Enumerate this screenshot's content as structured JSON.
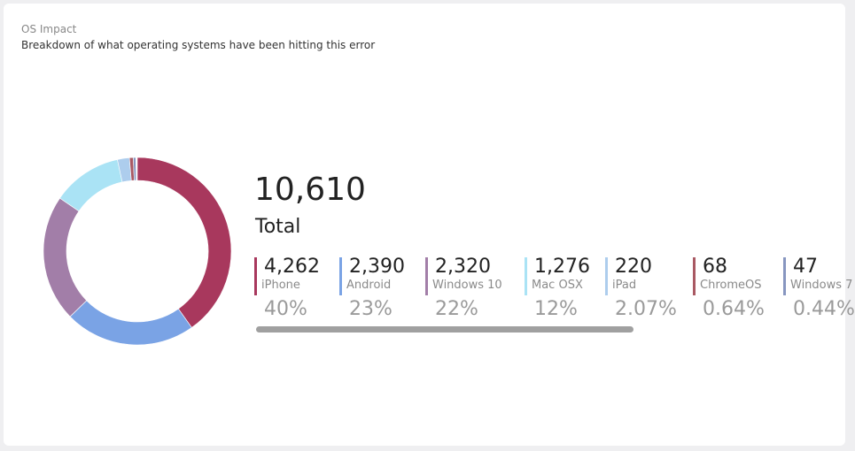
{
  "header": {
    "title": "OS Impact",
    "subtitle": "Breakdown of what operating systems have been hitting this error"
  },
  "chart_data": {
    "type": "pie",
    "total": 10610,
    "total_value_label": "10,610",
    "total_label": "Total",
    "categories": [
      "iPhone",
      "Android",
      "Windows 10",
      "Mac OSX",
      "iPad",
      "ChromeOS",
      "Windows 7"
    ],
    "values": [
      4262,
      2390,
      2320,
      1276,
      220,
      68,
      47
    ],
    "value_labels": [
      "4,262",
      "2,390",
      "2,320",
      "1,276",
      "220",
      "68",
      "47"
    ],
    "percentages": [
      40,
      23,
      22,
      12,
      2.07,
      0.64,
      0.44
    ],
    "percentage_labels": [
      "40%",
      "23%",
      "22%",
      "12%",
      "2.07%",
      "0.64%",
      "0.44%"
    ],
    "colors": [
      "#a8385d",
      "#7aa3e5",
      "#a27ea8",
      "#aae3f5",
      "#adcded",
      "#a95963",
      "#8796c0"
    ]
  }
}
